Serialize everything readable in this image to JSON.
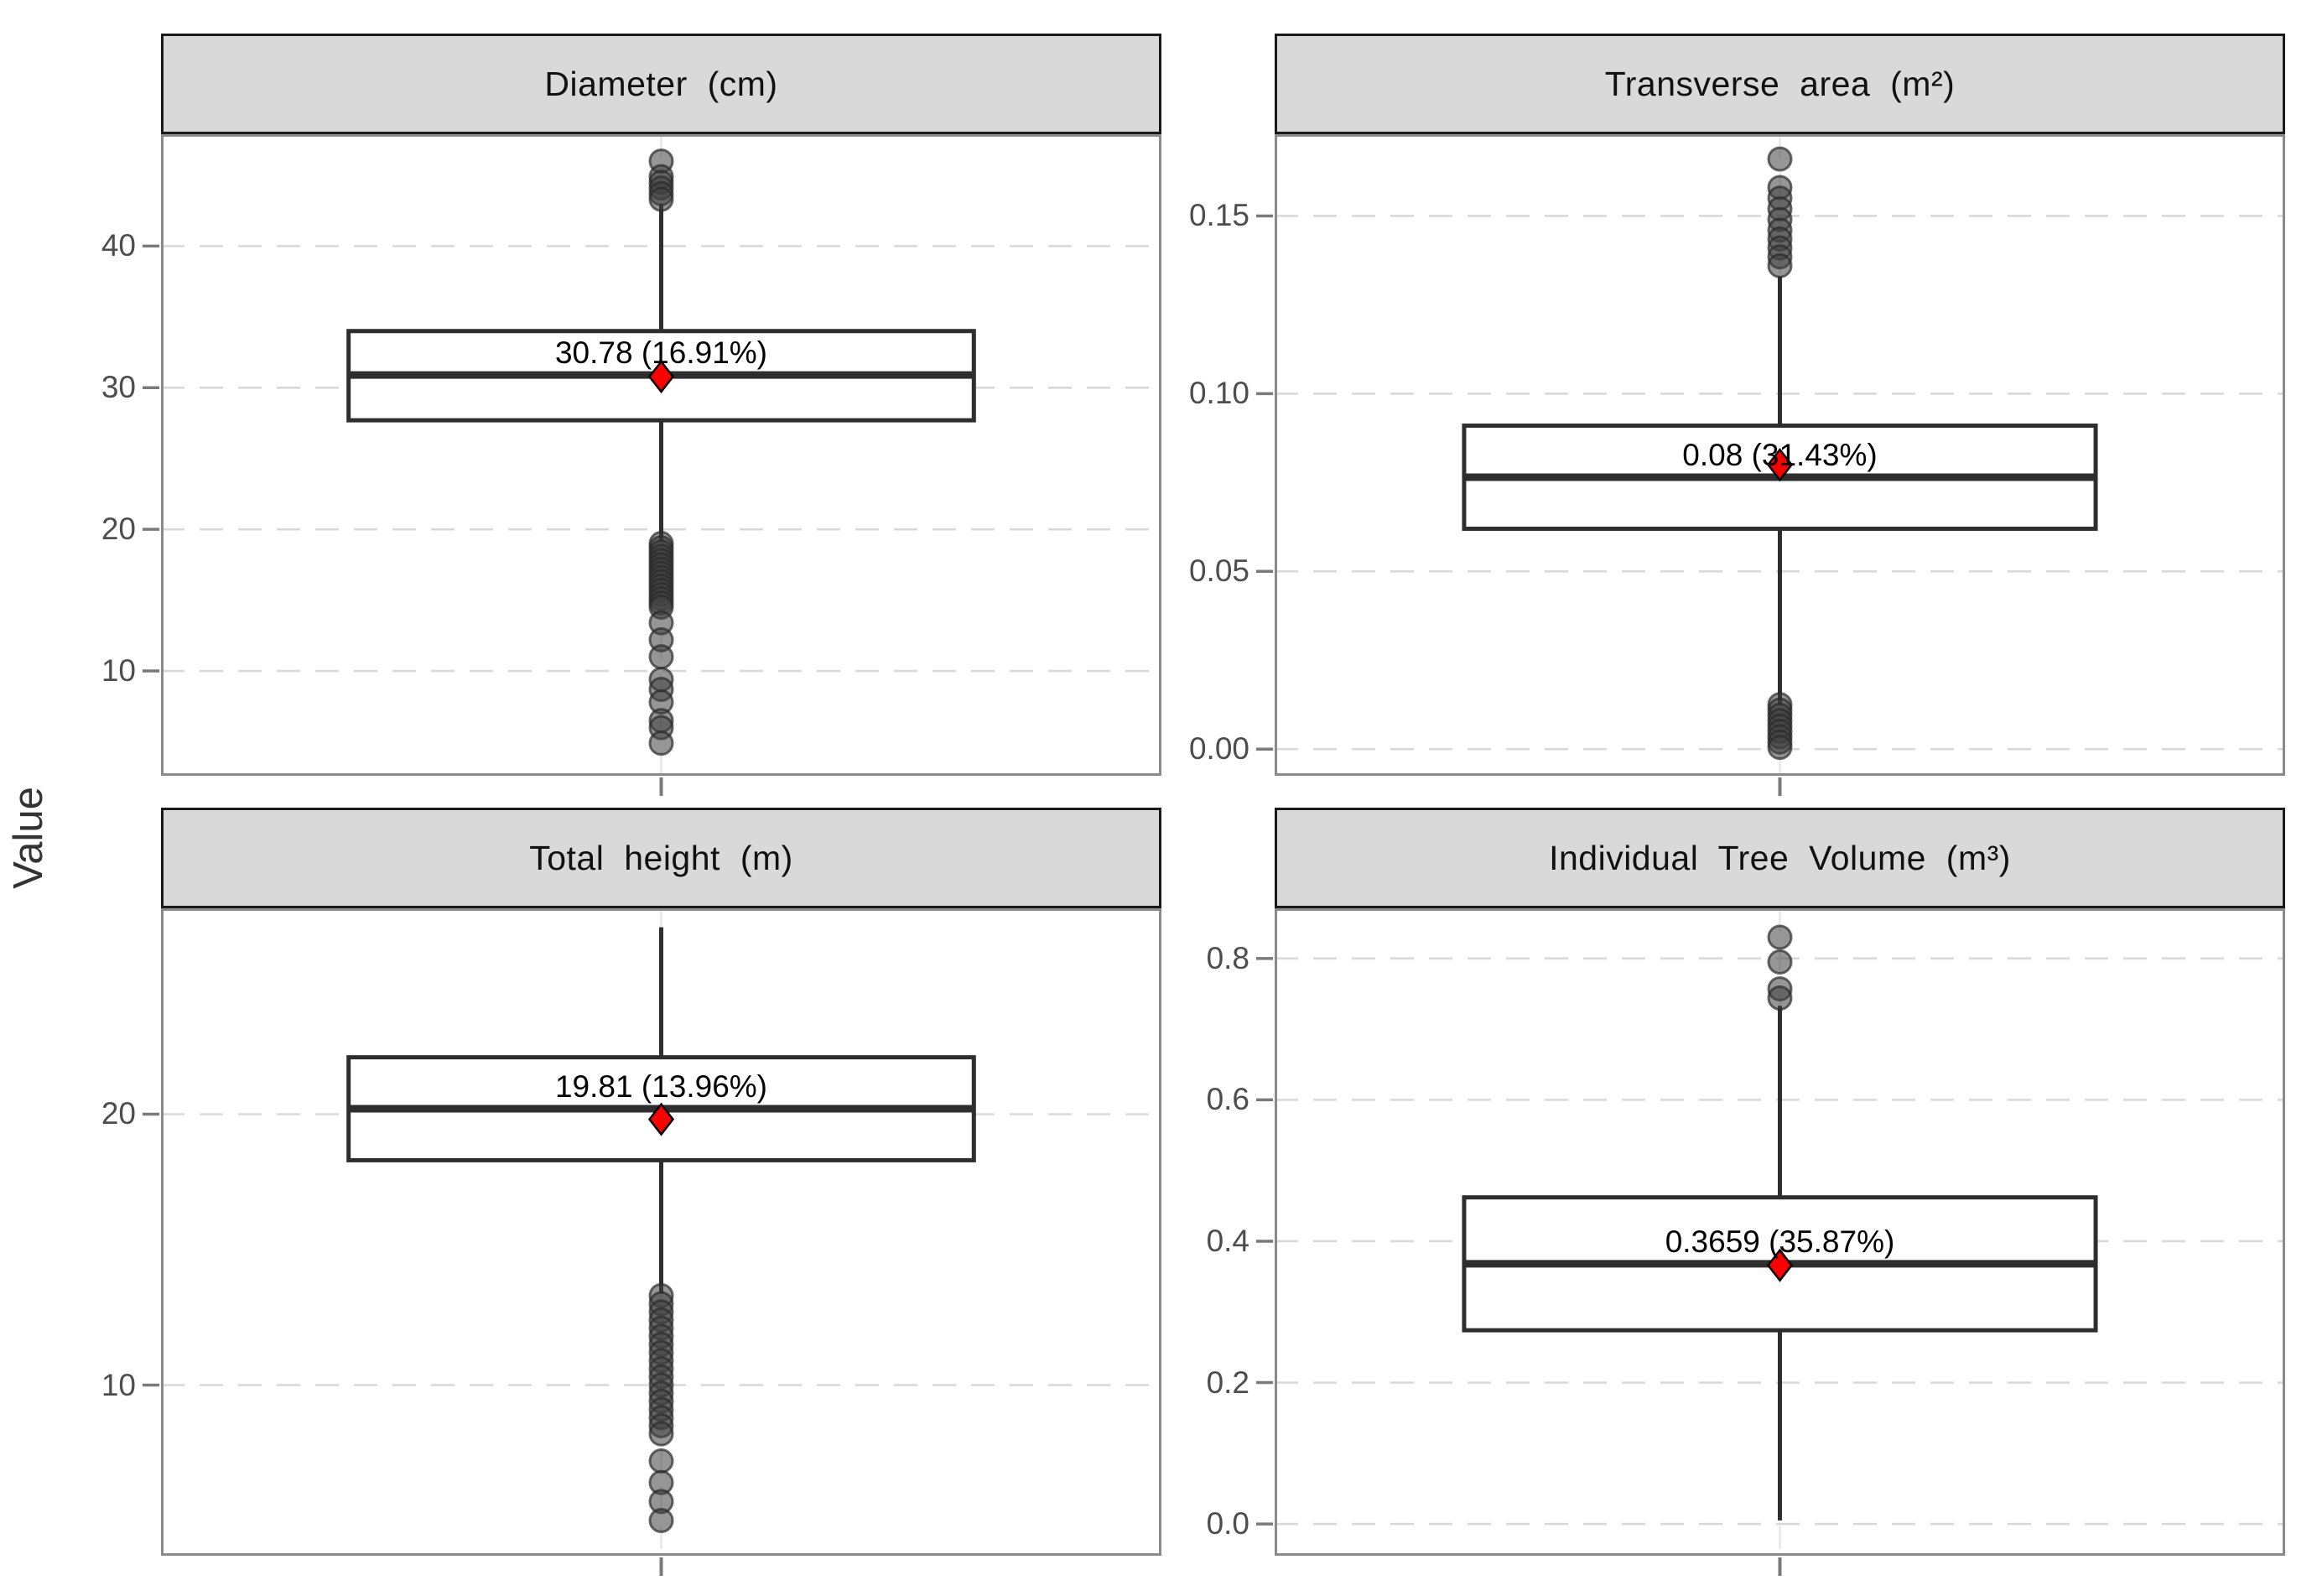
{
  "chart_data": {
    "type": "boxplot",
    "facet_layout": "2x2",
    "ylabel": "Value",
    "grid": true,
    "legend": "none",
    "panels": [
      {
        "title": "Diameter (cm)",
        "yticks": [
          {
            "label": "10",
            "value": 10
          },
          {
            "label": "20",
            "value": 20
          },
          {
            "label": "30",
            "value": 30
          },
          {
            "label": "40",
            "value": 40
          }
        ],
        "ylim": [
          2.6,
          47.9
        ],
        "box": {
          "whisker_low": 19.2,
          "q1": 27.7,
          "median": 30.9,
          "q3": 34.0,
          "whisker_high": 43.0
        },
        "mean": 30.78,
        "cv_percent": 16.91,
        "mean_label": "30.78 (16.91%)",
        "outliers_high": [
          46.0,
          44.9,
          44.5,
          44.1,
          43.7,
          43.3
        ],
        "outliers_low": [
          19.0,
          18.7,
          18.4,
          18.1,
          17.8,
          17.5,
          17.2,
          16.9,
          16.6,
          16.3,
          16.0,
          15.7,
          15.4,
          15.1,
          14.8,
          14.5,
          13.4,
          12.2,
          11.0,
          9.4,
          8.7,
          7.8,
          6.5,
          6.0,
          4.9
        ]
      },
      {
        "title": "Transverse area (m²)",
        "yticks": [
          {
            "label": "0.00",
            "value": 0
          },
          {
            "label": "0.05",
            "value": 0.05
          },
          {
            "label": "0.10",
            "value": 0.1
          },
          {
            "label": "0.15",
            "value": 0.15
          }
        ],
        "ylim": [
          -0.0075,
          0.173
        ],
        "box": {
          "whisker_low": 0.0125,
          "q1": 0.062,
          "median": 0.0765,
          "q3": 0.091,
          "whisker_high": 0.133
        },
        "mean": 0.08,
        "cv_percent": 31.43,
        "mean_label": "0.08 (31.43%)",
        "outliers_high": [
          0.166,
          0.158,
          0.155,
          0.152,
          0.149,
          0.146,
          0.1435,
          0.141,
          0.1385,
          0.136
        ],
        "outliers_low": [
          0.0125,
          0.011,
          0.0095,
          0.008,
          0.0065,
          0.005,
          0.0035,
          0.002,
          0.0005
        ]
      },
      {
        "title": "Total height (m)",
        "yticks": [
          {
            "label": "10",
            "value": 10
          },
          {
            "label": "20",
            "value": 20
          }
        ],
        "ylim": [
          3.7,
          27.6
        ],
        "box": {
          "whisker_low": 13.4,
          "q1": 18.3,
          "median": 20.2,
          "q3": 22.1,
          "whisker_high": 26.9
        },
        "mean": 19.81,
        "cv_percent": 13.96,
        "mean_label": "19.81 (13.96%)",
        "outliers_high": [],
        "outliers_low": [
          13.3,
          13.0,
          12.7,
          12.4,
          12.1,
          11.8,
          11.5,
          11.2,
          10.9,
          10.6,
          10.3,
          10.0,
          9.7,
          9.4,
          9.1,
          8.8,
          8.5,
          8.2,
          7.2,
          6.4,
          5.7,
          5.0
        ]
      },
      {
        "title": "Individual Tree Volume (m³)",
        "yticks": [
          {
            "label": "0.0",
            "value": 0
          },
          {
            "label": "0.2",
            "value": 0.2
          },
          {
            "label": "0.4",
            "value": 0.4
          },
          {
            "label": "0.6",
            "value": 0.6
          },
          {
            "label": "0.8",
            "value": 0.8
          }
        ],
        "ylim": [
          -0.045,
          0.871
        ],
        "box": {
          "whisker_low": 0.005,
          "q1": 0.274,
          "median": 0.368,
          "q3": 0.462,
          "whisker_high": 0.733
        },
        "mean": 0.3659,
        "cv_percent": 35.87,
        "mean_label": "0.3659 (35.87%)",
        "outliers_high": [
          0.83,
          0.795,
          0.757,
          0.744
        ],
        "outliers_low": []
      }
    ],
    "colors": {
      "strip_fill": "#d9d9d9",
      "strip_border": "#1a1a1a",
      "panel_border": "#8a8a8a",
      "gridline": "#d9d9d9",
      "center_gridline": "#e6e6e6",
      "axis_text": "#4d4d4d",
      "tick_mark": "#7a7a7a",
      "box_stroke": "#2e2e2e",
      "outlier_fill": "#3f3f3f",
      "mean_marker": "#ff0000",
      "label_text": "#000000"
    }
  }
}
